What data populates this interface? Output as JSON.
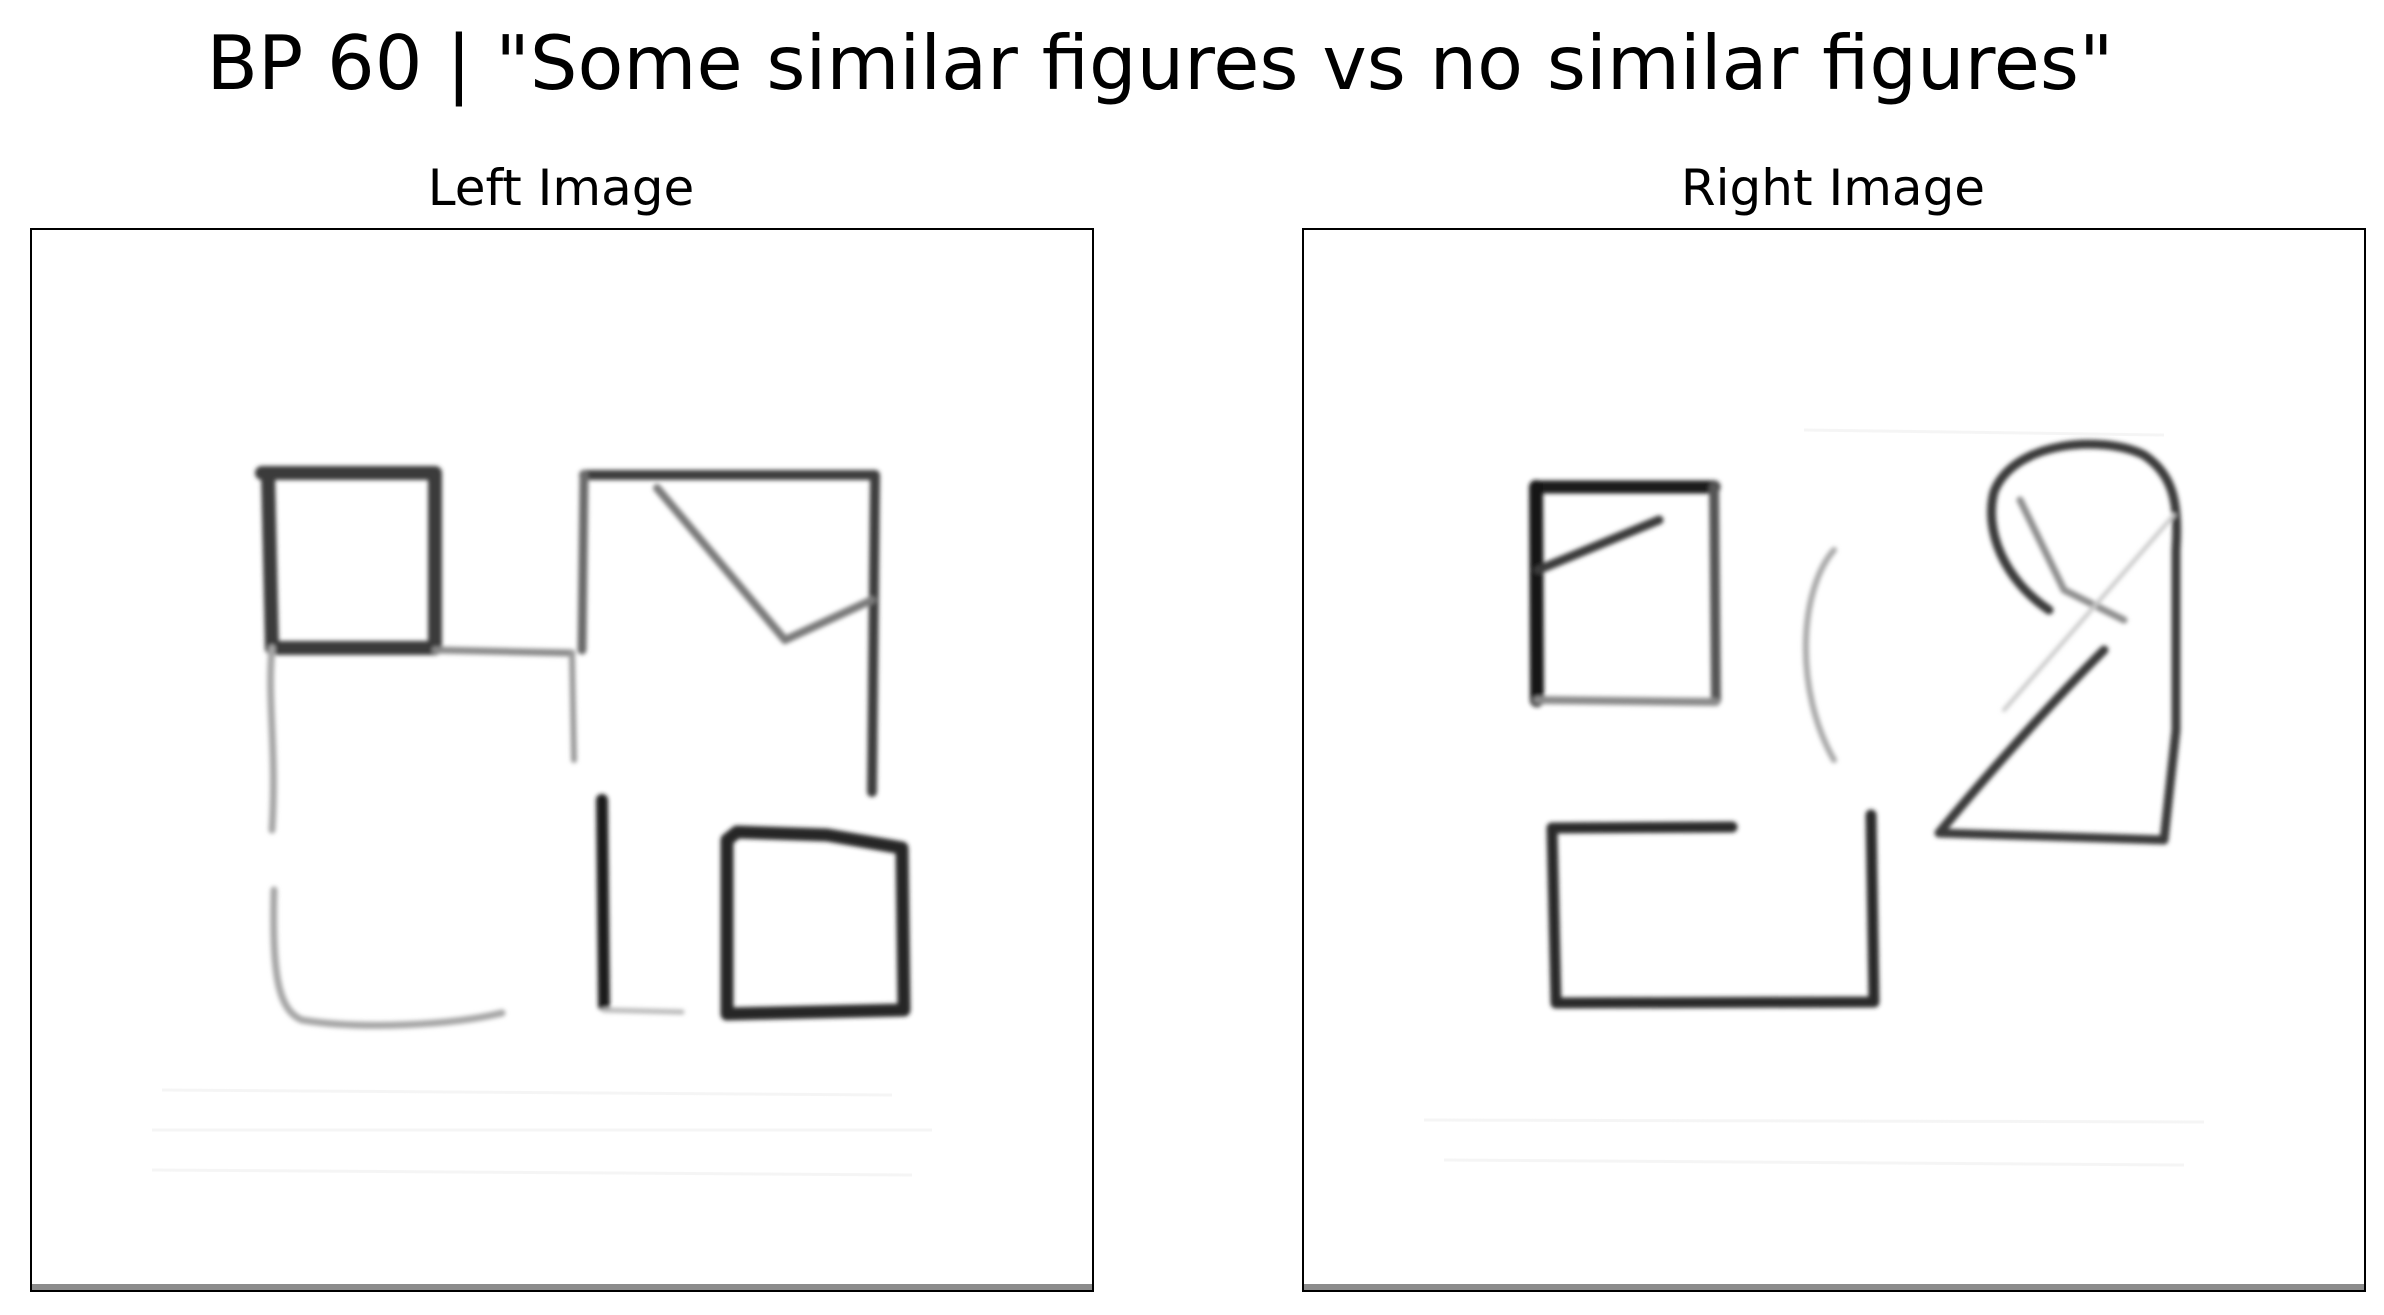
{
  "title": "BP 60 | \"Some similar figures vs no similar figures\"",
  "panels": {
    "left": {
      "title": "Left Image"
    },
    "right": {
      "title": "Right Image"
    }
  }
}
